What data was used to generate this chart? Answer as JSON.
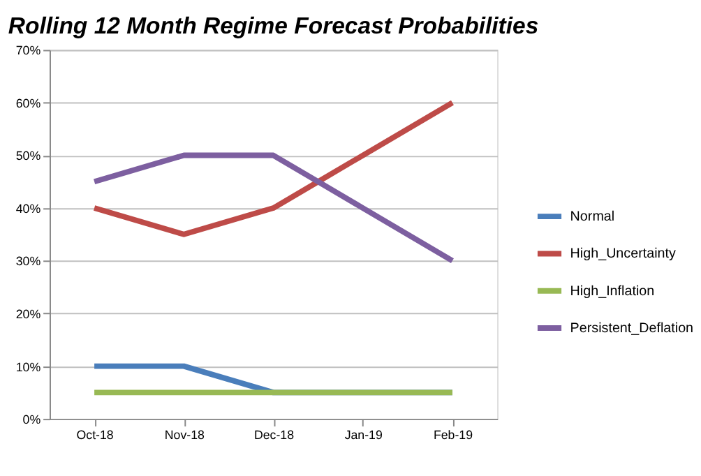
{
  "chart_data": {
    "type": "line",
    "title": "Rolling 12 Month Regime Forecast Probabilities",
    "categories": [
      "Oct-18",
      "Nov-18",
      "Dec-18",
      "Jan-19",
      "Feb-19"
    ],
    "series": [
      {
        "name": "Normal",
        "color": "#4a7ebb",
        "values": [
          10,
          10,
          5,
          5,
          5
        ]
      },
      {
        "name": "High_Uncertainty",
        "color": "#be4b48",
        "values": [
          40,
          35,
          40,
          50,
          60
        ]
      },
      {
        "name": "High_Inflation",
        "color": "#98b954",
        "values": [
          5,
          5,
          5,
          5,
          5
        ]
      },
      {
        "name": "Persistent_Deflation",
        "color": "#7d5fa0",
        "values": [
          45,
          50,
          50,
          40,
          30
        ]
      }
    ],
    "ylim": [
      0,
      70
    ],
    "yticks": [
      {
        "value": 0,
        "label": "0%"
      },
      {
        "value": 10,
        "label": "10%"
      },
      {
        "value": 20,
        "label": "20%"
      },
      {
        "value": 30,
        "label": "30%"
      },
      {
        "value": 40,
        "label": "40%"
      },
      {
        "value": 50,
        "label": "50%"
      },
      {
        "value": 60,
        "label": "60%"
      },
      {
        "value": 70,
        "label": "70%"
      }
    ],
    "grid": "y",
    "legend": "right",
    "marker": "none",
    "line_style": "solid"
  }
}
